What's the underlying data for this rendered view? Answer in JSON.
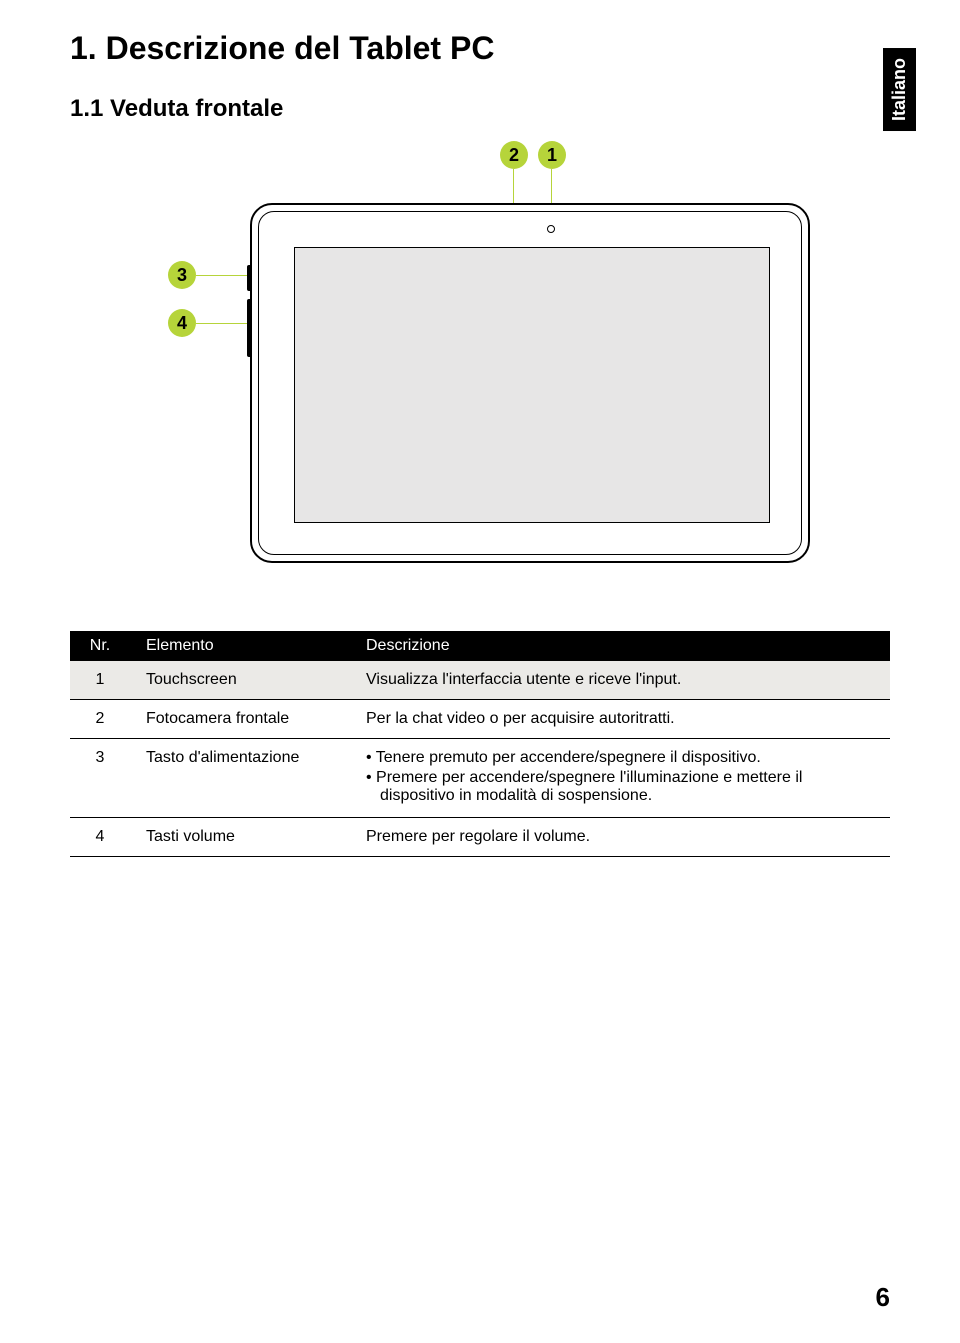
{
  "colors": {
    "accent": "#b6d43a",
    "screen_fill": "#e7e6e6",
    "table_stripe": "#ebeae7",
    "black": "#000000",
    "white": "#ffffff"
  },
  "side_label": "Italiano",
  "heading_main": "1.  Descrizione del Tablet PC",
  "heading_sub": "1.1 Veduta frontale",
  "diagram": {
    "callouts": {
      "c1": "1",
      "c2": "2",
      "c3": "3",
      "c4": "4"
    }
  },
  "table": {
    "columns": [
      "Nr.",
      "Elemento",
      "Descrizione"
    ],
    "rows": [
      {
        "nr": "1",
        "elemento": "Touchscreen",
        "type": "text",
        "desc": "Visualizza l'interfaccia utente e riceve l'input."
      },
      {
        "nr": "2",
        "elemento": "Fotocamera frontale",
        "type": "text",
        "desc": "Per la chat video o per acquisire autoritratti."
      },
      {
        "nr": "3",
        "elemento": "Tasto d'alimentazione",
        "type": "list",
        "items": [
          "Tenere premuto per accendere/spegnere il dispositivo.",
          "Premere per accendere/spegnere l'illuminazione e mettere il dispositivo in modalità di sospensione."
        ]
      },
      {
        "nr": "4",
        "elemento": "Tasti volume",
        "type": "text",
        "desc": "Premere per regolare il volume."
      }
    ]
  },
  "page_number": "6"
}
